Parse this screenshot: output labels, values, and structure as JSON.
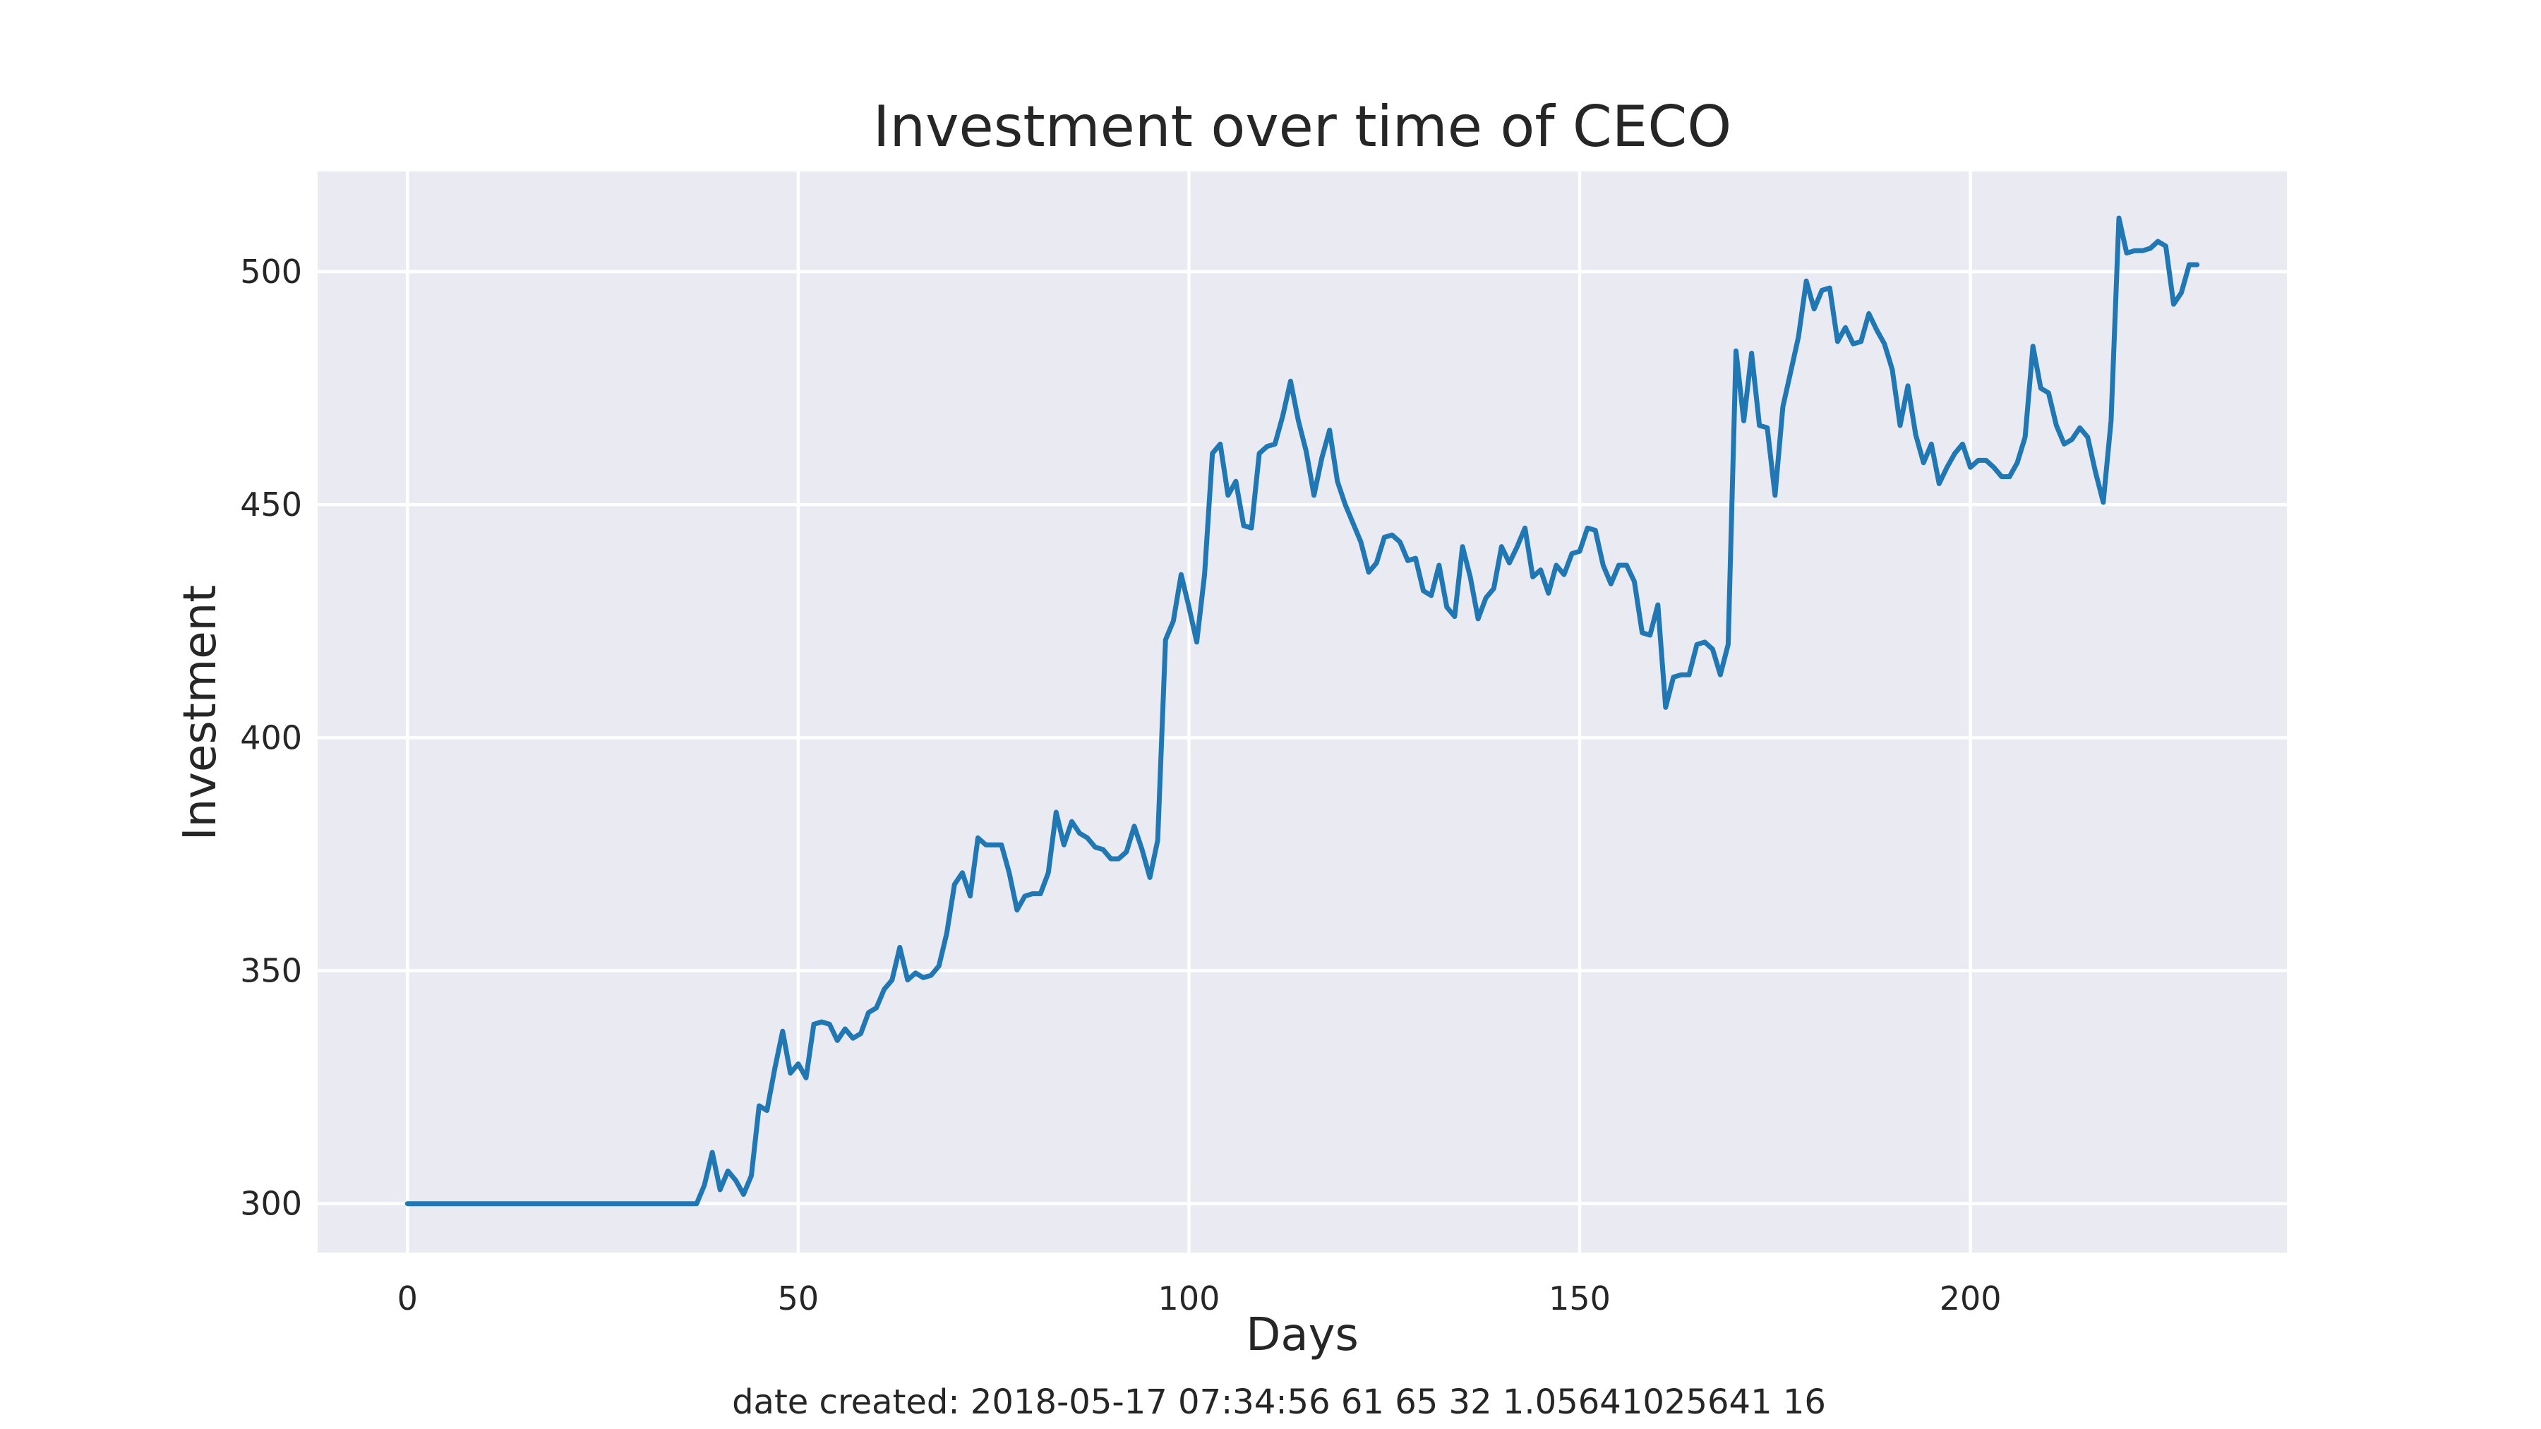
{
  "chart_data": {
    "type": "line",
    "title": "Investment over time of CECO",
    "xlabel": "Days",
    "ylabel": "Investment",
    "xlim": [
      -11.5,
      240.5
    ],
    "ylim": [
      289.5,
      521.5
    ],
    "xticks": [
      0,
      50,
      100,
      150,
      200
    ],
    "yticks": [
      300,
      350,
      400,
      450,
      500
    ],
    "grid": true,
    "colors": {
      "background": "#eaeaf2",
      "grid": "#ffffff",
      "line": "#1f77b4"
    },
    "series": [
      {
        "color": "#1f77b4",
        "values": [
          300,
          300,
          300,
          300,
          300,
          300,
          300,
          300,
          300,
          300,
          300,
          300,
          300,
          300,
          300,
          300,
          300,
          300,
          300,
          300,
          300,
          300,
          300,
          300,
          300,
          300,
          300,
          300,
          300,
          300,
          300,
          300,
          300,
          300,
          300,
          300,
          300,
          300,
          304,
          311,
          303,
          307,
          305,
          302,
          306,
          321,
          320,
          329,
          337,
          328,
          330,
          327,
          338.5,
          339,
          338.5,
          335,
          337.5,
          335.5,
          336.5,
          341,
          342,
          346,
          348,
          355,
          348,
          349.5,
          348.5,
          349,
          351,
          358,
          368.5,
          371,
          366,
          378.5,
          377,
          377,
          377,
          371,
          363,
          366,
          366.5,
          366.5,
          371,
          384,
          377,
          382,
          379.5,
          378.5,
          376.5,
          376,
          374,
          374,
          375.5,
          381,
          376,
          370,
          378,
          421,
          425,
          435,
          428,
          420.5,
          435,
          461,
          463,
          452,
          455,
          445.5,
          445,
          461,
          462.5,
          463,
          469,
          476.5,
          468,
          461.5,
          452,
          460,
          466,
          455,
          450,
          446,
          442,
          435.5,
          437.5,
          443,
          443.5,
          442,
          438,
          438.5,
          431.5,
          430.5,
          437,
          428,
          426,
          441,
          434.5,
          425.5,
          430,
          432,
          441,
          437.5,
          441,
          445,
          434.5,
          436,
          431,
          437,
          435,
          439.5,
          440,
          445,
          444.5,
          437,
          433,
          437,
          437,
          433.5,
          422.5,
          422,
          428.5,
          406.5,
          413,
          413.5,
          413.5,
          420,
          420.5,
          419,
          413.5,
          420,
          483,
          468,
          482.5,
          467,
          466.5,
          452,
          471,
          478.5,
          486,
          498,
          492,
          496,
          496.5,
          485,
          488,
          484.5,
          485,
          491,
          487.5,
          484.5,
          479,
          467,
          475.5,
          465,
          459,
          463,
          454.5,
          458,
          461,
          463,
          458,
          459.5,
          459.5,
          458,
          456,
          456,
          459,
          464.5,
          484,
          475,
          474,
          467,
          463,
          464,
          466.5,
          464.5,
          457,
          450.5,
          468,
          511.5,
          504,
          504.5,
          504.5,
          505,
          506.5,
          505.5,
          493,
          495.5,
          501.5,
          501.5
        ]
      }
    ]
  },
  "footer": {
    "text": "date created: 2018-05-17 07:34:56 61 65 32 1.05641025641 16"
  }
}
